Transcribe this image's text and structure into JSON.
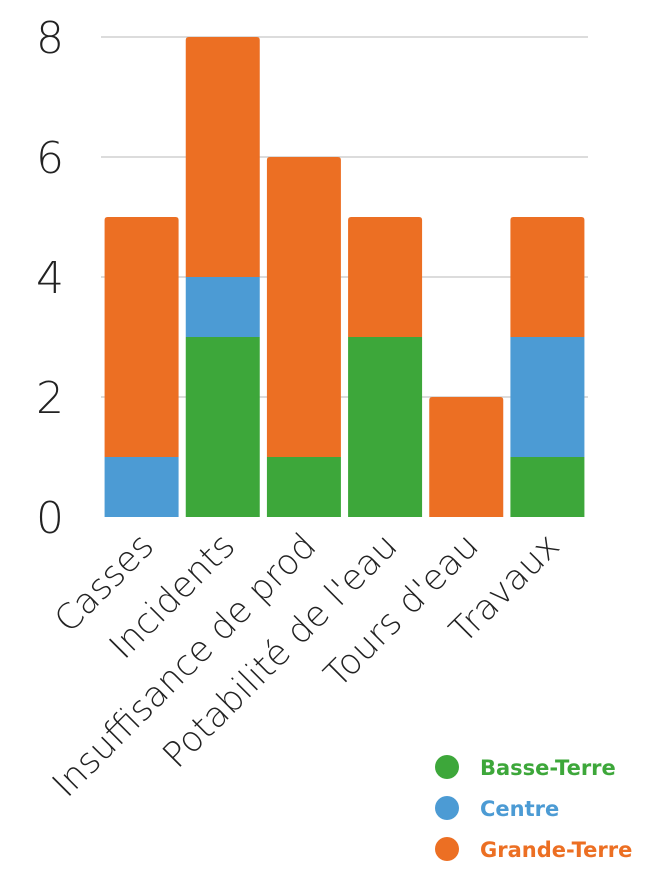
{
  "chart_data": {
    "type": "bar",
    "stacked": true,
    "categories": [
      "Casses",
      "Incidents",
      "Insuffisance de prod",
      "Potabilité de l'eau",
      "Tours d'eau",
      "Travaux"
    ],
    "series": [
      {
        "name": "Basse-Terre",
        "color": "#3da73a",
        "values": [
          0,
          3,
          1,
          3,
          0,
          1
        ]
      },
      {
        "name": "Centre",
        "color": "#4c9bd4",
        "values": [
          1,
          1,
          0,
          0,
          0,
          2
        ]
      },
      {
        "name": "Grande-Terre",
        "color": "#ec6f23",
        "values": [
          4,
          4,
          5,
          2,
          2,
          2
        ]
      }
    ],
    "ylim": [
      0,
      8
    ],
    "yticks": [
      0,
      2,
      4,
      6,
      8
    ],
    "grid": true,
    "legend": "bottom-right"
  }
}
